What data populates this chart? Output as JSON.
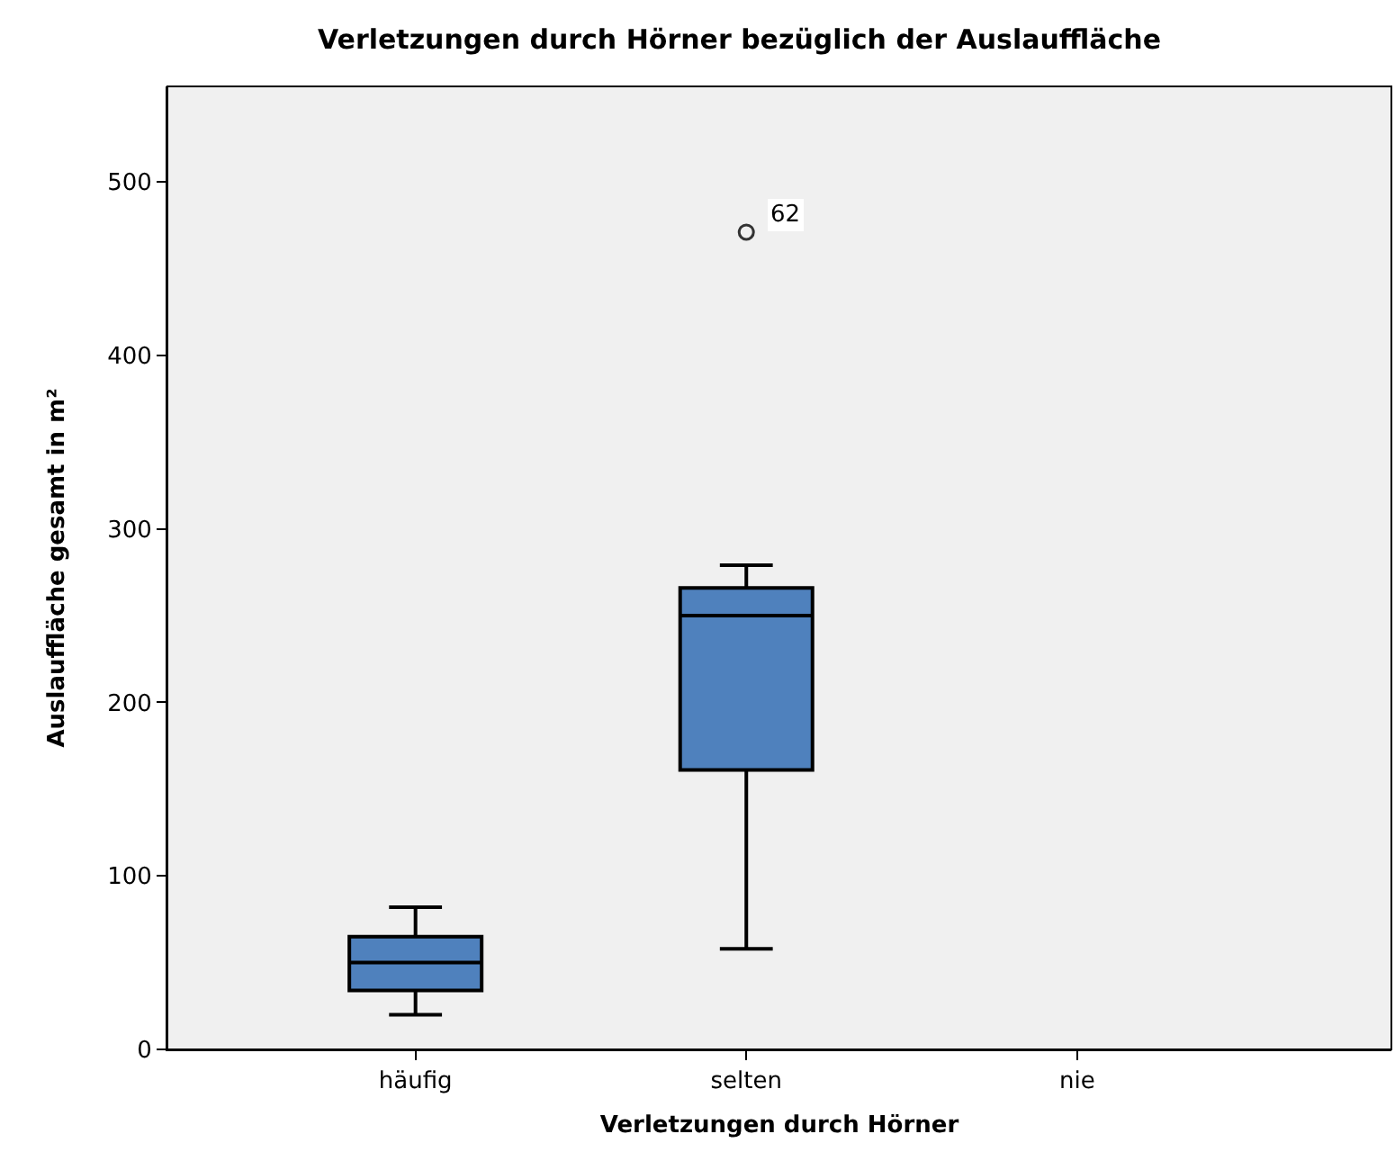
{
  "chart_data": {
    "type": "box",
    "title": "Verletzungen durch Hörner bezüglich der Auslauffläche",
    "xlabel": "Verletzungen durch Hörner",
    "ylabel": "Auslauffläche gesamt in m²",
    "categories": [
      "häufig",
      "selten",
      "nie"
    ],
    "series": [
      {
        "color": "#4f81bd",
        "boxes": [
          {
            "low": 20,
            "q1": 34,
            "median": 50,
            "q3": 65,
            "high": 82
          },
          {
            "low": 58,
            "q1": 161,
            "median": 250,
            "q3": 266,
            "high": 279,
            "outliers": [
              471
            ]
          },
          null
        ]
      }
    ],
    "annotations": [
      "62"
    ],
    "ylim": [
      0,
      555
    ],
    "yticks": [
      0,
      100,
      200,
      300,
      400,
      500
    ],
    "grid": false
  }
}
